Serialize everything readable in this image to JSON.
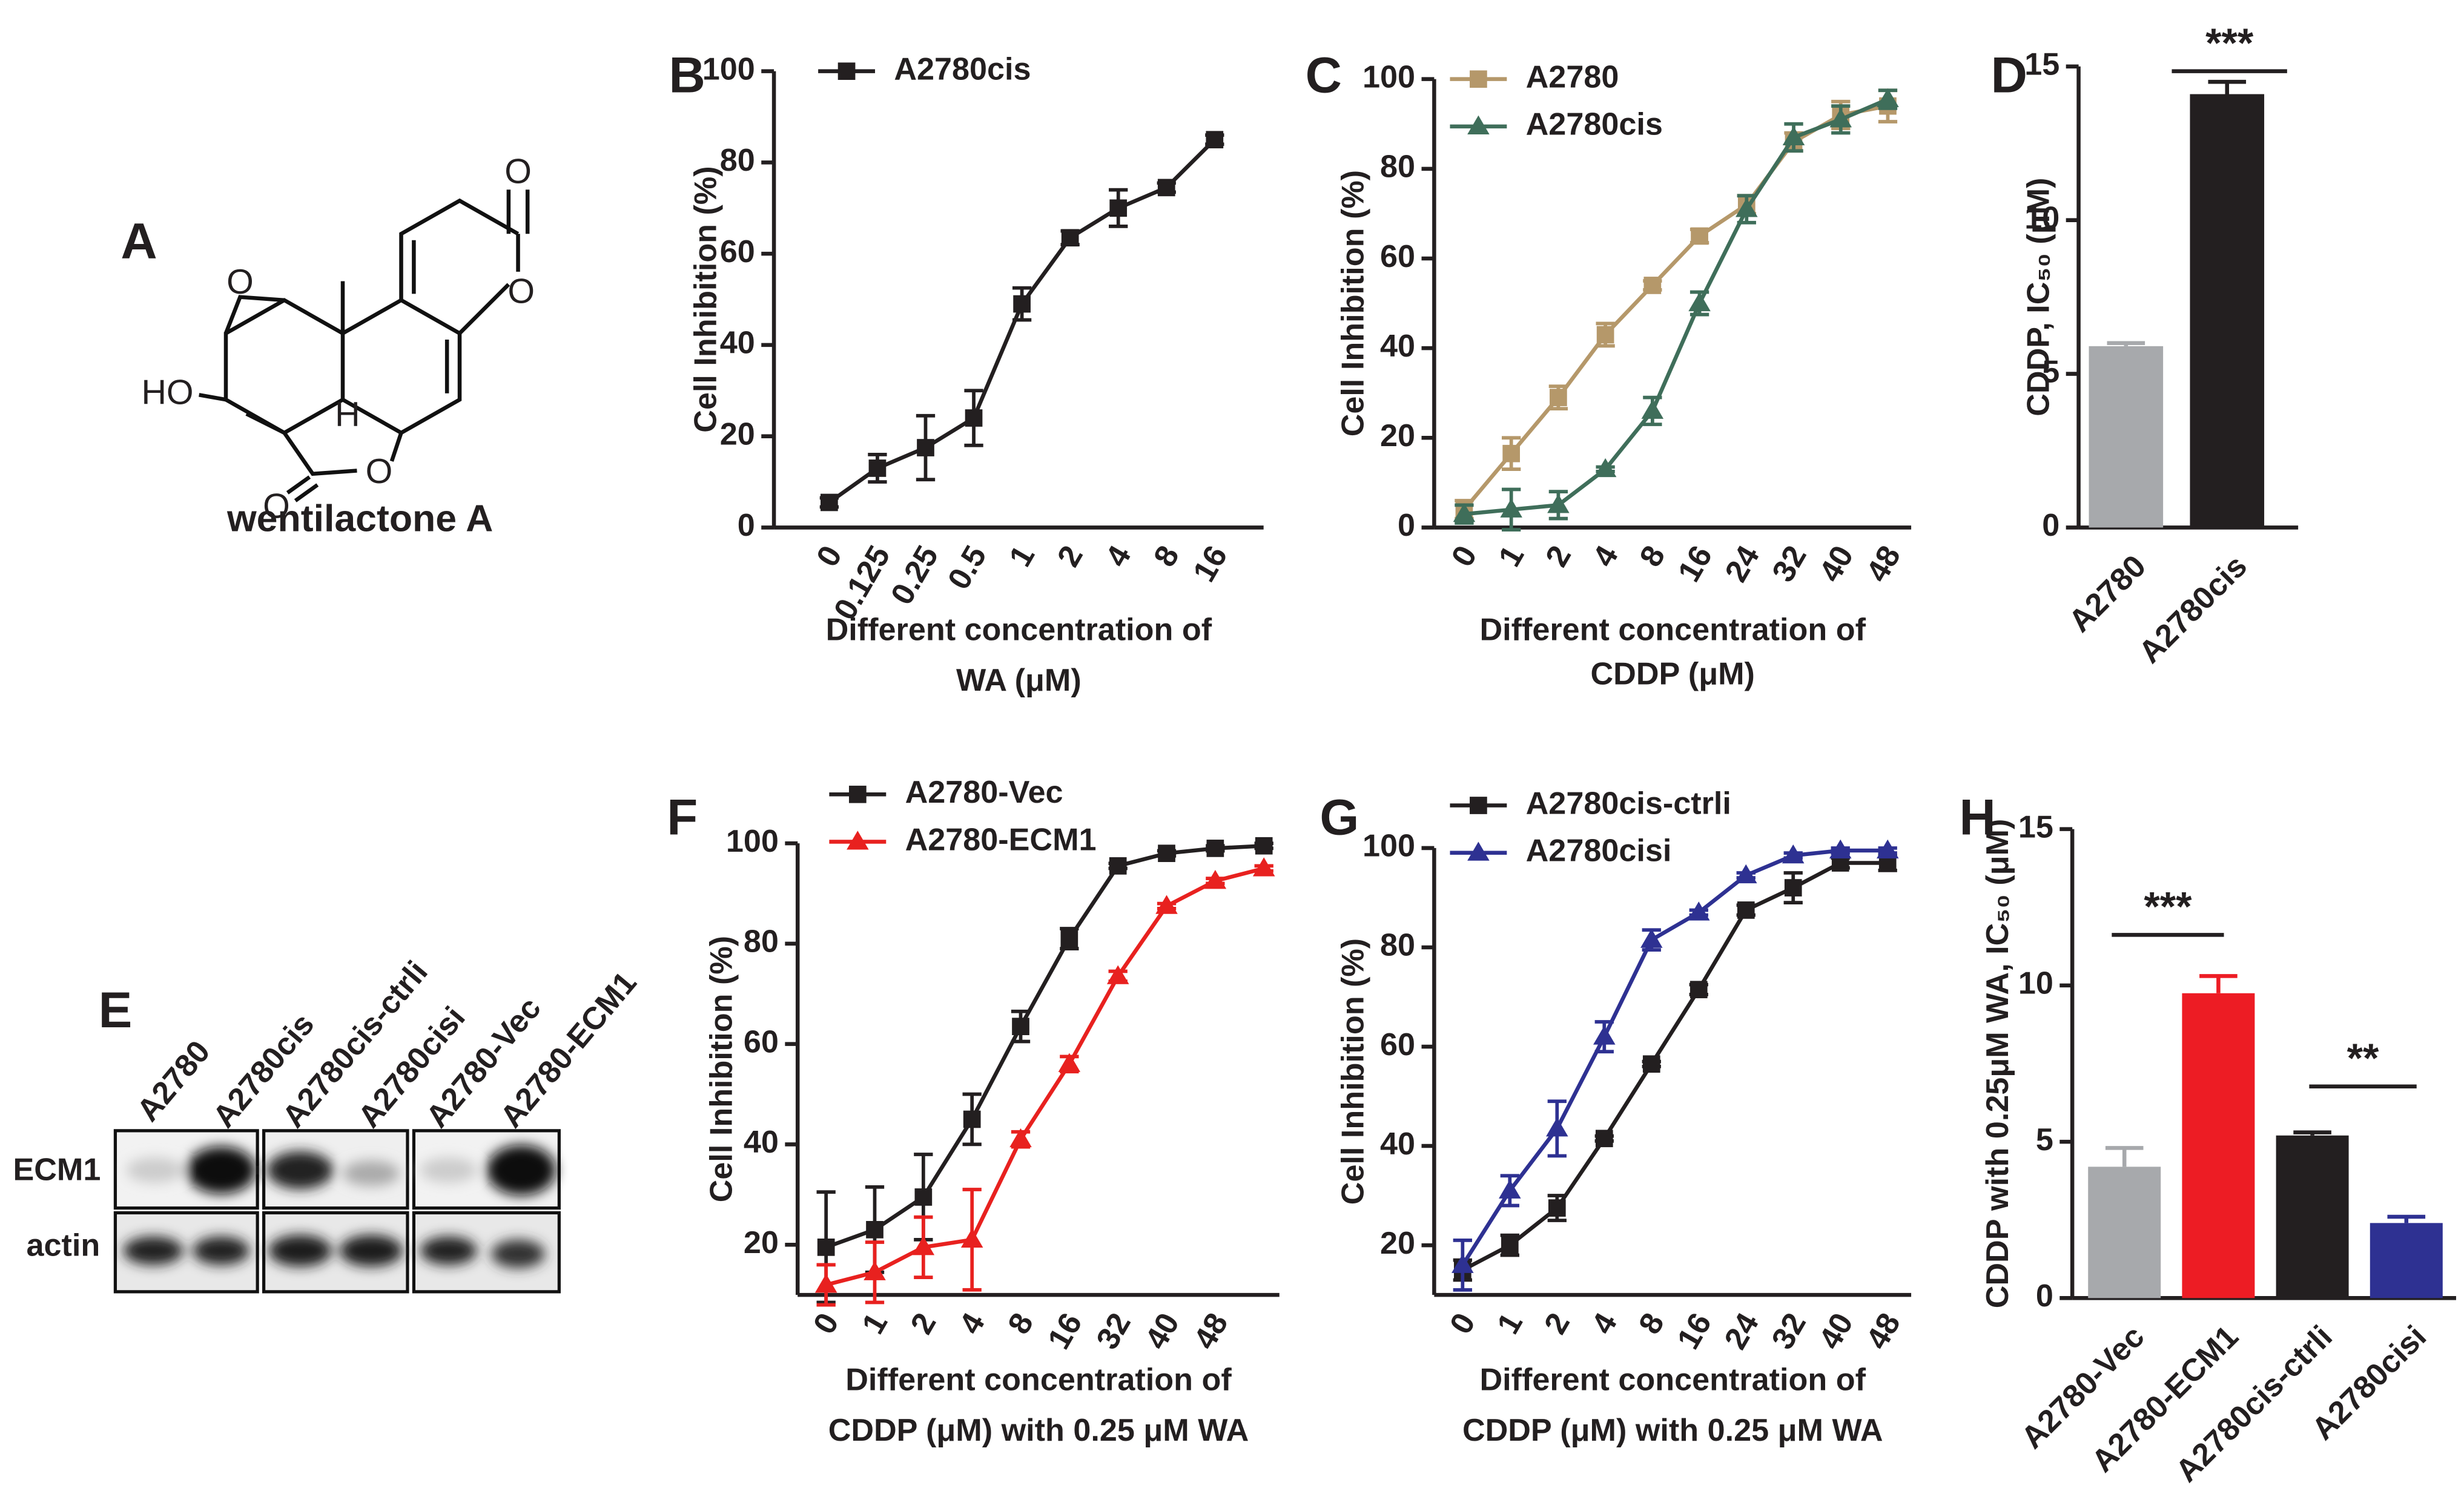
{
  "structure": {
    "label": "A",
    "name": "wentilactone A",
    "atoms": [
      "O",
      "O",
      "O",
      "HO",
      "H",
      "O",
      "O"
    ]
  },
  "blot": {
    "label": "E",
    "lanes": [
      "A2780",
      "A2780cis",
      "A2780cis-ctrli",
      "A2780cisi",
      "A2780-Vec",
      "A2780-ECM1"
    ],
    "rows": [
      "ECM1",
      "actin"
    ]
  },
  "chart_data": [
    {
      "type": "line",
      "label": "B",
      "ylabel": "Cell Inhibition (%)",
      "xlabel": [
        "Different concentration of",
        "WA (μM)"
      ],
      "categories": [
        "0",
        "0.125",
        "0.25",
        "0.5",
        "1",
        "2",
        "4",
        "8",
        "16"
      ],
      "ylim": [
        0,
        100
      ],
      "yticks": [
        0,
        20,
        40,
        60,
        80,
        100
      ],
      "legend": "upper left",
      "series": [
        {
          "name": "A2780cis",
          "color": "#231f20",
          "marker": "square",
          "values": [
            5.5,
            13,
            17.5,
            24,
            49,
            63.5,
            70,
            74.5,
            85
          ],
          "errors": [
            1,
            3,
            7,
            6,
            3.5,
            1.5,
            4,
            1,
            1
          ]
        }
      ]
    },
    {
      "type": "line",
      "label": "C",
      "ylabel": "Cell Inhibition (%)",
      "xlabel": [
        "Different concentration of",
        "CDDP (μM)"
      ],
      "categories": [
        "0",
        "1",
        "2",
        "4",
        "8",
        "16",
        "24",
        "32",
        "40",
        "48"
      ],
      "ylim": [
        0,
        100
      ],
      "yticks": [
        0,
        20,
        40,
        60,
        80,
        100
      ],
      "legend": "upper left",
      "series": [
        {
          "name": "A2780",
          "color": "#b5986a",
          "marker": "square",
          "values": [
            4,
            16.5,
            29,
            43,
            54,
            65,
            72,
            86,
            92,
            94
          ],
          "errors": [
            2,
            3.5,
            2.5,
            2.5,
            1,
            1.5,
            2,
            2,
            3,
            3.5
          ]
        },
        {
          "name": "A2780cis",
          "color": "#3f6e5a",
          "marker": "triangle",
          "values": [
            3,
            4,
            5,
            13,
            26,
            50,
            71,
            87,
            91,
            95.5
          ],
          "errors": [
            2,
            4.5,
            3,
            0.5,
            3,
            2.5,
            3,
            3,
            3,
            2
          ]
        }
      ]
    },
    {
      "type": "bar",
      "label": "D",
      "ylabel": "CDDP, IC₅₀ (μM)",
      "categories": [
        "A2780",
        "A2780cis"
      ],
      "values": [
        5.9,
        14.1
      ],
      "errors": [
        0.1,
        0.4
      ],
      "colors": [
        "#a7a9ac",
        "#231f20"
      ],
      "ylim": [
        0,
        15
      ],
      "yticks": [
        0,
        5,
        10,
        15
      ],
      "annotations": [
        "***"
      ]
    },
    {
      "type": "line",
      "label": "F",
      "ylabel": "Cell Inhibition (%)",
      "xlabel": [
        "Different concentration of",
        "CDDP (μM) with 0.25 μM WA"
      ],
      "categories": [
        "0",
        "1",
        "2",
        "4",
        "8",
        "16",
        "32",
        "40",
        "48",
        null
      ],
      "ylim": [
        10,
        100
      ],
      "yticks": [
        20,
        40,
        60,
        80,
        100
      ],
      "legend": "upper left",
      "series": [
        {
          "name": "A2780-Vec",
          "color": "#231f20",
          "marker": "square",
          "values": [
            19.5,
            23,
            29.5,
            45,
            63.5,
            81,
            95.5,
            98,
            99,
            99.5
          ],
          "errors": [
            11,
            8.5,
            8.5,
            5,
            3,
            2,
            0.5,
            0.5,
            0.5,
            0.5
          ]
        },
        {
          "name": "A2780-ECM1",
          "color": "#e8211f",
          "marker": "triangle",
          "values": [
            12,
            14.5,
            19.5,
            21,
            41,
            56,
            73.5,
            87.5,
            92.5,
            95
          ],
          "errors": [
            4,
            6,
            6,
            10,
            1.5,
            1.5,
            1,
            0.5,
            0.5,
            0.5
          ]
        }
      ]
    },
    {
      "type": "line",
      "label": "G",
      "ylabel": "Cell Inhibition (%)",
      "xlabel": [
        "Different concentration of",
        "CDDP (μM) with 0.25 μM WA"
      ],
      "categories": [
        "0",
        "1",
        "2",
        "4",
        "8",
        "16",
        "24",
        "32",
        "40",
        "48"
      ],
      "ylim": [
        10,
        100
      ],
      "yticks": [
        20,
        40,
        60,
        80,
        100
      ],
      "legend": "upper left",
      "series": [
        {
          "name": "A2780cis-ctrli",
          "color": "#231f20",
          "marker": "square",
          "values": [
            15,
            20,
            27.5,
            41.5,
            56.5,
            71.5,
            87.5,
            92,
            97,
            97
          ],
          "errors": [
            2,
            2,
            2.5,
            0.5,
            0.5,
            1,
            1,
            3,
            1,
            1.5
          ]
        },
        {
          "name": "A2780cisi",
          "color": "#2e3192",
          "marker": "triangle",
          "values": [
            16,
            31,
            43.5,
            62,
            81.5,
            87,
            94.5,
            98.5,
            99.5,
            99.5
          ],
          "errors": [
            5,
            3,
            5.5,
            3,
            2,
            0.5,
            0.5,
            0.5,
            0.5,
            0.5
          ]
        }
      ]
    },
    {
      "type": "bar",
      "label": "H",
      "ylabel": "CDDP with 0.25μM WA, IC₅₀ (μM)",
      "categories": [
        "A2780-Vec",
        "A2780-ECM1",
        "A2780cis-ctrli",
        "A2780cisi"
      ],
      "values": [
        4.2,
        9.75,
        5.2,
        2.4
      ],
      "errors": [
        0.6,
        0.55,
        0.1,
        0.2
      ],
      "colors": [
        "#a7a9ac",
        "#ed1c24",
        "#231f20",
        "#2e3192"
      ],
      "ylim": [
        0,
        15
      ],
      "yticks": [
        0,
        5,
        10,
        15
      ],
      "annotations": [
        "***",
        "**"
      ]
    }
  ]
}
